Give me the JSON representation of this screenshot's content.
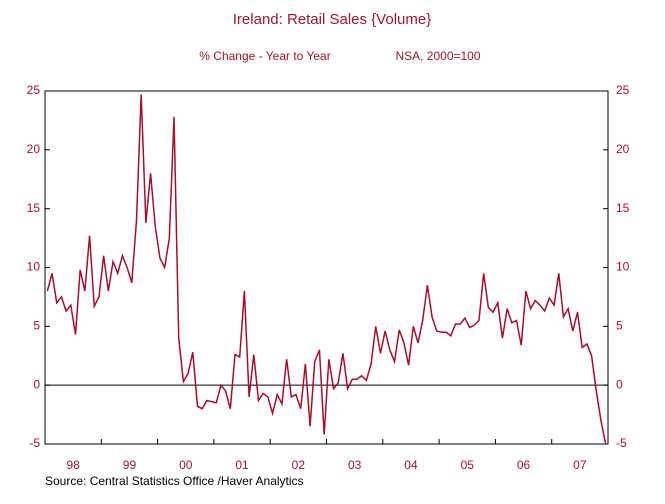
{
  "chart_data": {
    "type": "line",
    "title": "Ireland: Retail Sales {Volume}",
    "subtitle": "% Change - Year to Year",
    "subtitle_right": "NSA, 2000=100",
    "source": "Source:  Central Statistics Office /Haver Analytics",
    "categories": [
      "98",
      null,
      null,
      null,
      null,
      null,
      null,
      null,
      null,
      null,
      null,
      null,
      "99",
      null,
      null,
      null,
      null,
      null,
      null,
      null,
      null,
      null,
      null,
      null,
      "00",
      null,
      null,
      null,
      null,
      null,
      null,
      null,
      null,
      null,
      null,
      null,
      "01",
      null,
      null,
      null,
      null,
      null,
      null,
      null,
      null,
      null,
      null,
      null,
      "02",
      null,
      null,
      null,
      null,
      null,
      null,
      null,
      null,
      null,
      null,
      null,
      "03",
      null,
      null,
      null,
      null,
      null,
      null,
      null,
      null,
      null,
      null,
      null,
      "04",
      null,
      null,
      null,
      null,
      null,
      null,
      null,
      null,
      null,
      null,
      null,
      "05",
      null,
      null,
      null,
      null,
      null,
      null,
      null,
      null,
      null,
      null,
      null,
      "06",
      null,
      null,
      null,
      null,
      null,
      null,
      null,
      null,
      null,
      null,
      null,
      "07",
      null,
      null,
      null,
      null,
      null,
      null,
      null,
      null,
      null,
      null,
      null
    ],
    "series": [
      {
        "color": "#a0122d",
        "values": [
          8,
          9.5,
          7,
          7.5,
          6.3,
          6.8,
          4.3,
          9.8,
          8,
          12.7,
          6.7,
          7.5,
          11,
          8,
          10.5,
          9.5,
          11,
          10,
          8.7,
          14,
          24.7,
          13.8,
          18,
          13.5,
          10.8,
          10,
          12.5,
          22.8,
          4,
          0.3,
          1,
          2.8,
          -1.8,
          -2,
          -1.3,
          -1.4,
          -1.5,
          0,
          -0.5,
          -2,
          2.6,
          2.4,
          8,
          -1,
          2.6,
          -1.3,
          -0.7,
          -1,
          -2.4,
          -0.8,
          -1.6,
          2.2,
          -1,
          -0.8,
          -2,
          1.8,
          -3.5,
          2,
          3,
          -4.2,
          2.2,
          -0.3,
          0.2,
          2.7,
          -0.3,
          0.5,
          0.5,
          0.8,
          0.4,
          1.8,
          5,
          2.7,
          4.6,
          3,
          2,
          4.7,
          3.6,
          1.7,
          5,
          3.6,
          5.5,
          8.5,
          5.8,
          4.6,
          4.5,
          4.5,
          4.2,
          5.2,
          5.2,
          5.7,
          4.9,
          5.1,
          5.5,
          9.5,
          6.6,
          6.2,
          7,
          4,
          6.5,
          5.3,
          5.5,
          3.4,
          8,
          6.5,
          7.2,
          6.8,
          6.3,
          7.4,
          6.8,
          9.5,
          5.8,
          6.5,
          4.6,
          6.2,
          3.2,
          3.5,
          2.5,
          -0.5,
          -3,
          -5
        ]
      }
    ],
    "ylim": [
      -5,
      25
    ],
    "yticks": [
      -5,
      0,
      5,
      10,
      15,
      20,
      25
    ],
    "grid": false
  }
}
